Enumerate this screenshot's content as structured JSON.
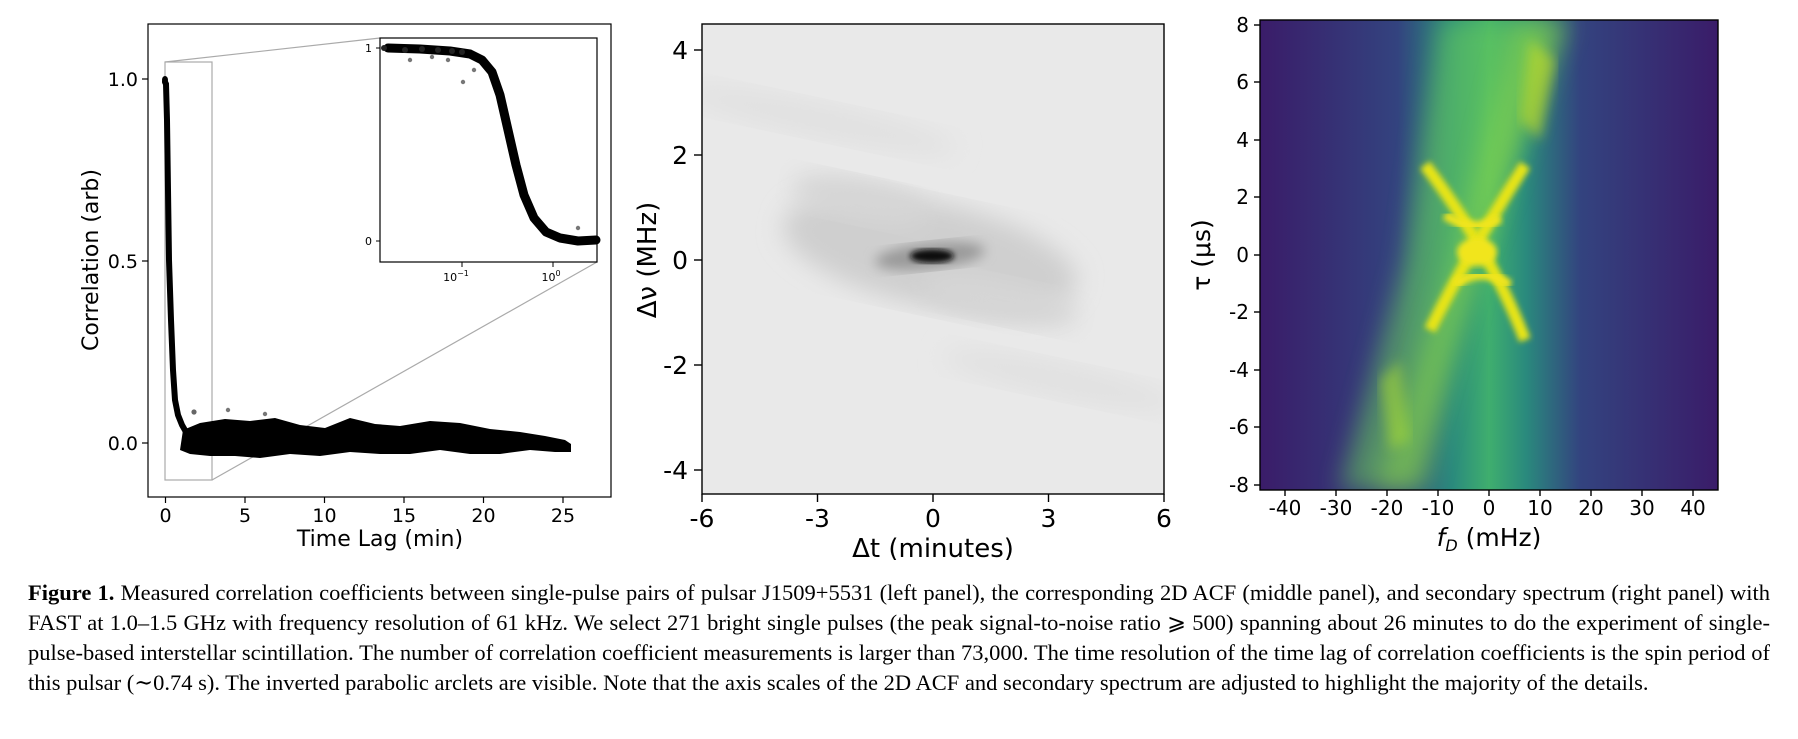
{
  "figure": {
    "panels": {
      "left": {
        "xlabel": "Time Lag (min)",
        "ylabel": "Correlation (arb)",
        "xticks": [
          "0",
          "5",
          "10",
          "15",
          "20",
          "25"
        ],
        "yticks": [
          "1.0",
          "0.5",
          "0.0"
        ],
        "inset": {
          "yticks": [
            "1",
            "0"
          ],
          "xtick_bases": [
            "10",
            "10"
          ],
          "xtick_exps": [
            "−1",
            "0"
          ]
        }
      },
      "middle": {
        "xlabel": "Δt (minutes)",
        "ylabel": "Δν (MHz)",
        "xticks": [
          "-6",
          "-3",
          "0",
          "3",
          "6"
        ],
        "yticks": [
          "4",
          "2",
          "0",
          "-2",
          "-4"
        ]
      },
      "right": {
        "xlabel_main": "f",
        "xlabel_sub": "D",
        "xlabel_unit": " (mHz)",
        "ylabel": "τ (μs)",
        "xticks": [
          "-40",
          "-30",
          "-20",
          "-10",
          "0",
          "10",
          "20",
          "30",
          "40"
        ],
        "yticks": [
          "8",
          "6",
          "4",
          "2",
          "0",
          "-2",
          "-4",
          "-6",
          "-8"
        ],
        "colormap_dark": "#3b1f6e",
        "colormap_bright": "#f1e51d"
      }
    }
  },
  "caption": {
    "label": "Figure 1.",
    "text": " Measured correlation coefficients between single-pulse pairs of pulsar J1509+5531 (left panel), the corresponding 2D ACF (middle panel), and secondary spectrum (right panel) with FAST at 1.0–1.5 GHz with frequency resolution of 61 kHz. We select 271 bright single pulses (the peak signal-to-noise ratio ⩾ 500) spanning about 26 minutes to do the experiment of single-pulse-based interstellar scintillation. The number of correlation coefficient measurements is larger than 73,000. The time resolution of the time lag of correlation coefficients is the spin period of this pulsar (∼0.74 s). The inverted parabolic arclets are visible. Note that the axis scales of the 2D ACF and secondary spectrum are adjusted to highlight the majority of the details."
  }
}
